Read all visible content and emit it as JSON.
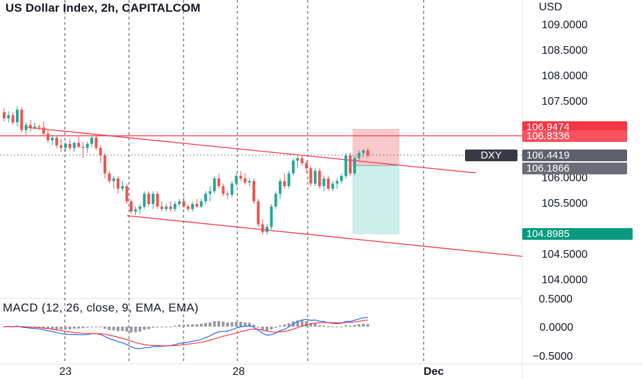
{
  "header": {
    "title": "US Dollar Index, 2h, CAPITALCOM"
  },
  "macd": {
    "title": "MACD (12, 26, close, 9, EMA, EMA)"
  },
  "price_axis": {
    "currency": "USD",
    "ticks": [
      "109.0000",
      "108.5000",
      "108.0000",
      "107.5000",
      "106.0000",
      "105.5000",
      "104.5000",
      "104.0000"
    ]
  },
  "price_tags": {
    "stop": "106.9474",
    "entry": "106.8336",
    "symbol": "DXY",
    "last": "106.4419",
    "prev": "106.1866",
    "target": "104.8985"
  },
  "macd_axis": {
    "ticks": [
      "0.5000",
      "0.0000",
      "−0.5000"
    ]
  },
  "time_axis": {
    "ticks": [
      "23",
      "28",
      "Dec"
    ]
  },
  "colors": {
    "up": "#26a69a",
    "down": "#ef5350",
    "trendline": "#f23645",
    "stop_zone": "#f8c9cb",
    "target_zone": "#cdeee9",
    "macd_line": "#2962ff",
    "signal_line": "#f23645",
    "stop_tag": "#f23645",
    "entry_tag": "#f7525f",
    "last_tag": "#5d606b",
    "target_tag": "#089981",
    "symbol_tag": "#363a45"
  },
  "chart_data": {
    "type": "candlestick",
    "symbol": "US Dollar Index",
    "interval": "2h",
    "source": "CAPITALCOM",
    "ylim": [
      103.6,
      109.2
    ],
    "candles": [
      [
        107.3,
        107.38,
        107.12,
        107.18
      ],
      [
        107.18,
        107.32,
        107.1,
        107.24
      ],
      [
        107.24,
        107.3,
        107.05,
        107.1
      ],
      [
        107.1,
        107.42,
        107.02,
        107.35
      ],
      [
        107.35,
        107.4,
        106.9,
        106.95
      ],
      [
        106.95,
        107.1,
        106.85,
        107.05
      ],
      [
        107.05,
        107.15,
        106.92,
        107.0
      ],
      [
        107.0,
        107.1,
        106.95,
        107.02
      ],
      [
        107.02,
        107.06,
        106.95,
        107.0
      ],
      [
        107.0,
        107.12,
        106.85,
        106.88
      ],
      [
        106.88,
        106.95,
        106.7,
        106.75
      ],
      [
        106.75,
        106.85,
        106.65,
        106.8
      ],
      [
        106.8,
        106.85,
        106.6,
        106.65
      ],
      [
        106.65,
        106.78,
        106.52,
        106.6
      ],
      [
        106.6,
        106.72,
        106.52,
        106.68
      ],
      [
        106.68,
        106.78,
        106.55,
        106.6
      ],
      [
        106.6,
        106.72,
        106.52,
        106.7
      ],
      [
        106.7,
        106.82,
        106.6,
        106.62
      ],
      [
        106.62,
        106.72,
        106.4,
        106.6
      ],
      [
        106.6,
        106.72,
        106.5,
        106.68
      ],
      [
        106.68,
        106.85,
        106.62,
        106.8
      ],
      [
        106.8,
        106.85,
        106.55,
        106.6
      ],
      [
        106.6,
        106.65,
        106.3,
        106.45
      ],
      [
        106.45,
        106.5,
        106.0,
        106.1
      ],
      [
        106.1,
        106.15,
        105.9,
        105.95
      ],
      [
        105.95,
        106.05,
        105.8,
        106.0
      ],
      [
        106.0,
        106.05,
        105.7,
        105.8
      ],
      [
        105.8,
        105.95,
        105.75,
        105.85
      ],
      [
        105.85,
        105.9,
        105.5,
        105.55
      ],
      [
        105.55,
        105.6,
        105.3,
        105.35
      ],
      [
        105.35,
        105.45,
        105.28,
        105.4
      ],
      [
        105.4,
        105.5,
        105.3,
        105.45
      ],
      [
        105.45,
        105.75,
        105.4,
        105.7
      ],
      [
        105.7,
        105.75,
        105.45,
        105.5
      ],
      [
        105.5,
        105.75,
        105.4,
        105.7
      ],
      [
        105.7,
        105.75,
        105.4,
        105.45
      ],
      [
        105.45,
        105.55,
        105.35,
        105.4
      ],
      [
        105.4,
        105.5,
        105.35,
        105.45
      ],
      [
        105.45,
        105.55,
        105.35,
        105.4
      ],
      [
        105.4,
        105.55,
        105.35,
        105.5
      ],
      [
        105.5,
        105.6,
        105.45,
        105.55
      ],
      [
        105.55,
        105.65,
        105.42,
        105.45
      ],
      [
        105.45,
        105.5,
        105.35,
        105.4
      ],
      [
        105.4,
        105.55,
        105.35,
        105.5
      ],
      [
        105.5,
        105.6,
        105.42,
        105.45
      ],
      [
        105.45,
        105.6,
        105.42,
        105.55
      ],
      [
        105.55,
        105.75,
        105.5,
        105.7
      ],
      [
        105.7,
        105.85,
        105.55,
        105.75
      ],
      [
        105.75,
        106.05,
        105.7,
        106.0
      ],
      [
        106.0,
        106.1,
        105.8,
        105.85
      ],
      [
        105.85,
        105.9,
        105.65,
        105.7
      ],
      [
        105.7,
        105.75,
        105.6,
        105.68
      ],
      [
        105.68,
        105.95,
        105.62,
        105.9
      ],
      [
        105.9,
        106.1,
        105.85,
        106.05
      ],
      [
        106.05,
        106.15,
        105.95,
        106.0
      ],
      [
        106.0,
        106.1,
        105.88,
        105.92
      ],
      [
        105.92,
        106.0,
        105.85,
        105.95
      ],
      [
        105.95,
        106.0,
        105.5,
        105.55
      ],
      [
        105.55,
        105.6,
        105.05,
        105.1
      ],
      [
        105.1,
        105.2,
        104.9,
        104.95
      ],
      [
        104.95,
        105.1,
        104.9,
        105.05
      ],
      [
        105.05,
        105.5,
        105.0,
        105.45
      ],
      [
        105.45,
        105.75,
        105.4,
        105.7
      ],
      [
        105.7,
        106.0,
        105.6,
        105.95
      ],
      [
        105.95,
        106.1,
        105.8,
        105.85
      ],
      [
        105.85,
        106.15,
        105.8,
        106.1
      ],
      [
        106.1,
        106.4,
        106.05,
        106.35
      ],
      [
        106.35,
        106.45,
        106.2,
        106.4
      ],
      [
        106.4,
        106.45,
        106.25,
        106.3
      ],
      [
        106.3,
        106.35,
        106.1,
        106.2
      ],
      [
        106.2,
        106.25,
        105.85,
        105.9
      ],
      [
        105.9,
        106.2,
        105.85,
        106.15
      ],
      [
        106.15,
        106.2,
        105.8,
        105.85
      ],
      [
        105.85,
        106.05,
        105.75,
        106.0
      ],
      [
        106.0,
        106.05,
        105.75,
        105.8
      ],
      [
        105.8,
        105.95,
        105.75,
        105.9
      ],
      [
        105.9,
        106.0,
        105.8,
        105.95
      ],
      [
        105.95,
        106.1,
        105.9,
        106.05
      ],
      [
        106.05,
        106.5,
        106.0,
        106.45
      ],
      [
        106.45,
        106.5,
        106.05,
        106.1
      ],
      [
        106.1,
        106.45,
        106.05,
        106.4
      ],
      [
        106.4,
        106.55,
        106.35,
        106.5
      ],
      [
        106.5,
        106.58,
        106.42,
        106.55
      ],
      [
        106.55,
        106.6,
        106.4,
        106.45
      ]
    ]
  }
}
